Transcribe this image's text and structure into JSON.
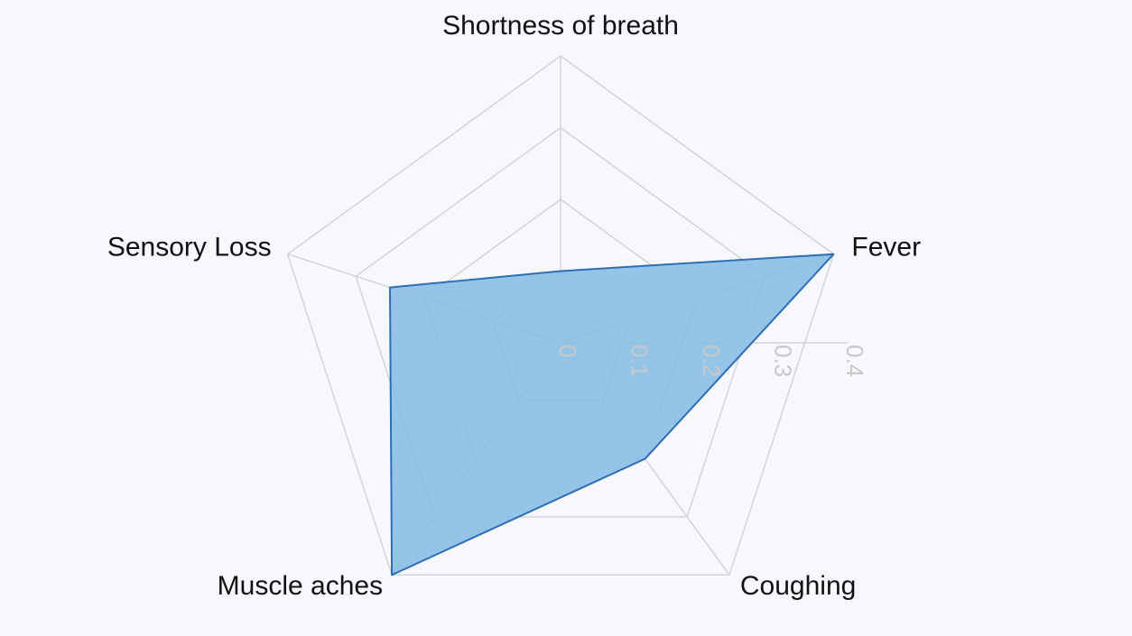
{
  "chart_data": {
    "type": "radar",
    "categories": [
      "Shortness of breath",
      "Fever",
      "Coughing",
      "Muscle aches",
      "Sensory Loss"
    ],
    "series": [
      {
        "values": [
          0.1,
          0.4,
          0.2,
          0.4,
          0.25
        ]
      }
    ],
    "radial_ticks": [
      "0",
      "0.1",
      "0.2",
      "0.3",
      "0.4"
    ],
    "rlim": [
      0,
      0.4
    ],
    "grid": true,
    "colors": {
      "fill": "#82bce5",
      "stroke": "#2f6db5",
      "grid": "#d4d4d4",
      "tick": "#c8c8c8",
      "label": "#111111"
    }
  }
}
